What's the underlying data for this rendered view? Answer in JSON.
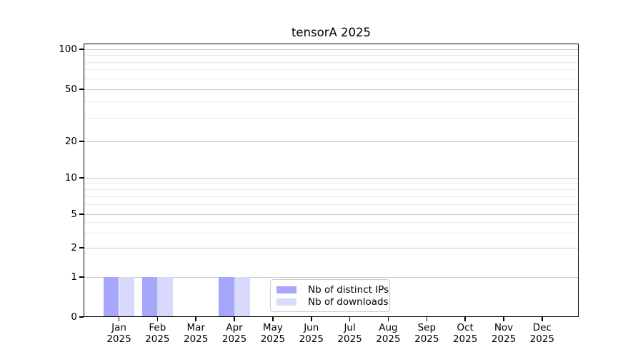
{
  "title": "tensorA 2025",
  "chart_data": {
    "type": "bar",
    "title": "tensorA 2025",
    "x": {
      "months": [
        "Jan",
        "Feb",
        "Mar",
        "Apr",
        "May",
        "Jun",
        "Jul",
        "Aug",
        "Sep",
        "Oct",
        "Nov",
        "Dec"
      ],
      "year": "2025"
    },
    "y_axis": {
      "scale": "symlog (linear 0-1, log above)",
      "major_ticks": [
        0,
        1,
        2,
        5,
        10,
        20,
        50,
        100
      ],
      "minor_ticks": [
        3,
        4,
        6,
        7,
        8,
        9,
        30,
        40,
        60,
        70,
        80,
        90
      ],
      "ylim": [
        0,
        110
      ],
      "grid": "horizontal, major and minor"
    },
    "series": [
      {
        "name": "Nb of distinct IPs",
        "color": "#a6a6fa",
        "values": [
          1,
          1,
          0,
          1,
          0,
          0,
          0,
          0,
          0,
          0,
          0,
          0
        ]
      },
      {
        "name": "Nb of downloads",
        "color": "#d9d9fb",
        "values": [
          1,
          1,
          0,
          1,
          0,
          0,
          0,
          0,
          0,
          0,
          0,
          0
        ]
      }
    ],
    "legend": {
      "position": "lower center"
    }
  }
}
